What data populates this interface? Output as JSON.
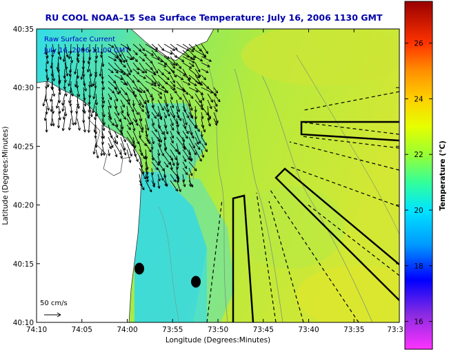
{
  "title": "RU COOL  NOAA–15  Sea Surface Temperature:  July 16, 2006 1130 GMT",
  "annotation": {
    "line1": "Raw Surface Current",
    "line2": "July 16, 2006 11:00 GMT"
  },
  "scale": {
    "label": "50 cm/s"
  },
  "axes": {
    "xlabel": "Longitude (Degrees:Minutes)",
    "ylabel": "Latitude (Degrees:Minutes)",
    "x_ticks": [
      "74:10",
      "74:05",
      "74:00",
      "73:55",
      "73:50",
      "73:45",
      "73:40",
      "73:35",
      "73:3"
    ],
    "y_ticks": [
      "40:35",
      "40:30",
      "40:25",
      "40:20",
      "40:15",
      "40:10"
    ]
  },
  "colorbar": {
    "label": "Temperature (°C)",
    "ticks": [
      "26",
      "24",
      "22",
      "20",
      "18",
      "16"
    ],
    "range": [
      15,
      27.5
    ]
  },
  "colors": {
    "title": "#0000aa",
    "annotation": "#0000cc",
    "land": "#ffffff",
    "cold_water": "#33d6e8",
    "warm_water": "#c9e83a"
  },
  "legend_note": {
    "scale_arrow": "50 cm/s"
  }
}
